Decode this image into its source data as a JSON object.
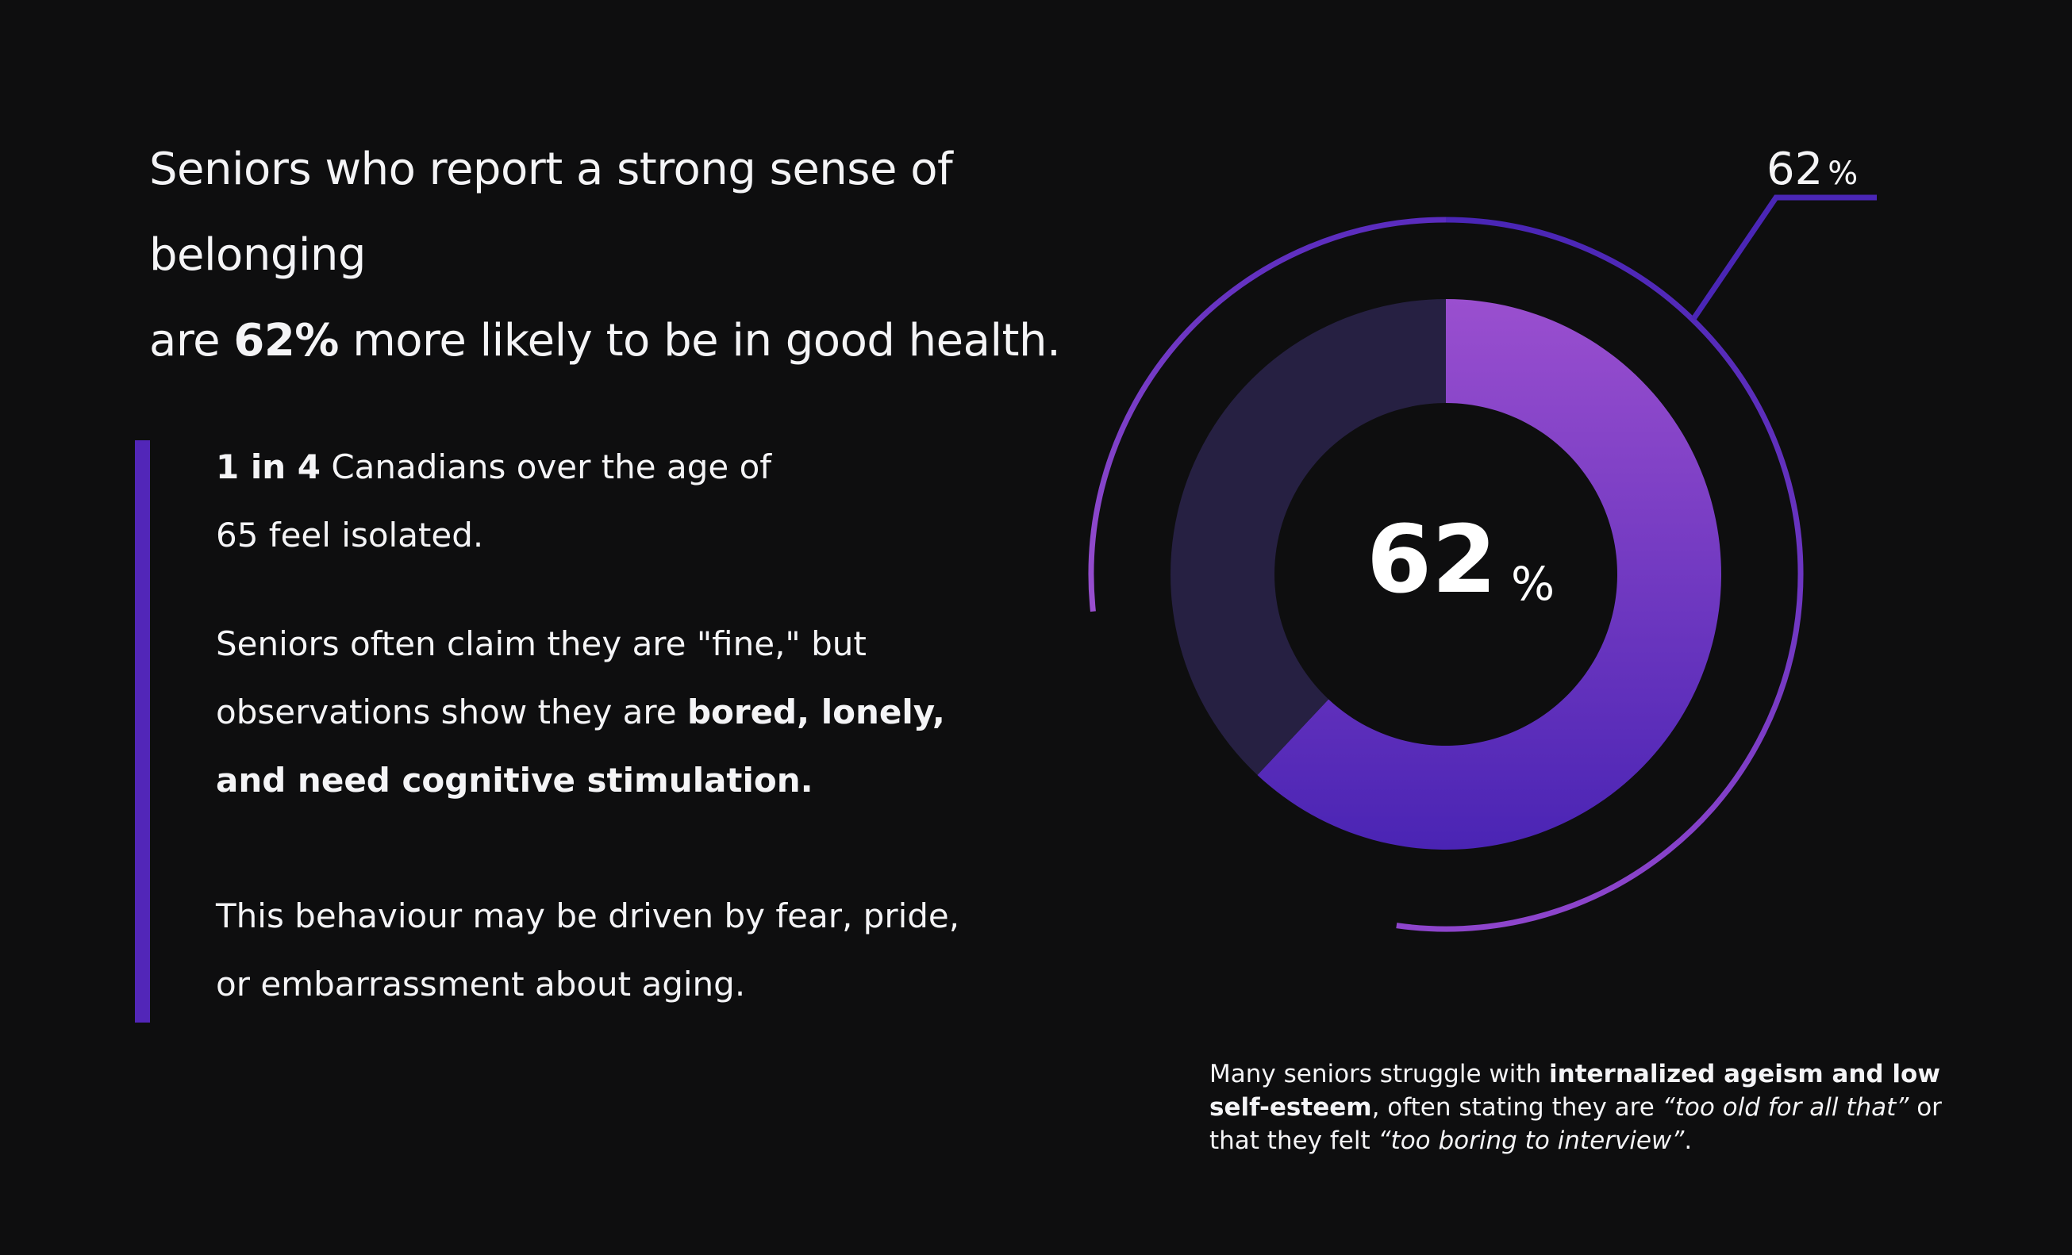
{
  "headline": {
    "line1": "Seniors who report a strong sense of belonging",
    "line2_pre": "are ",
    "line2_bold": "62%",
    "line2_post": " more likely to be in good health."
  },
  "facts": {
    "p1_bold": "1 in 4",
    "p1_rest": " Canadians over the age of",
    "p1_line2": "65 feel isolated.",
    "p2_line1": "Seniors often claim they are \"fine,\" but",
    "p2_pre": "observations show they are ",
    "p2_bold1": "bored, lonely,",
    "p2_bold2": "and need cognitive stimulation.",
    "p3_line1": "This behaviour may be driven by fear, pride,",
    "p3_line2": "or embarrassment about aging."
  },
  "note": {
    "pre": "Many seniors struggle with ",
    "bold": "internalized ageism and low self-esteem",
    "mid": ", often stating they are ",
    "italic1": "“too old for all that”",
    "mid2": " or that they felt ",
    "italic2": "“too boring to interview”",
    "end": "."
  },
  "chart_data": {
    "type": "pie",
    "donut": true,
    "slices": [
      {
        "value": 62
      },
      {
        "value": 38
      }
    ],
    "center_value": "62",
    "center_unit": "%",
    "callout_value": "62",
    "callout_unit": "%",
    "colors": {
      "highlight_top": "#9a4fcf",
      "highlight_bottom": "#4a24b4",
      "remainder": "#262042",
      "outer_arc": "#6a35c8",
      "callout_line": "#4a26b6"
    }
  }
}
